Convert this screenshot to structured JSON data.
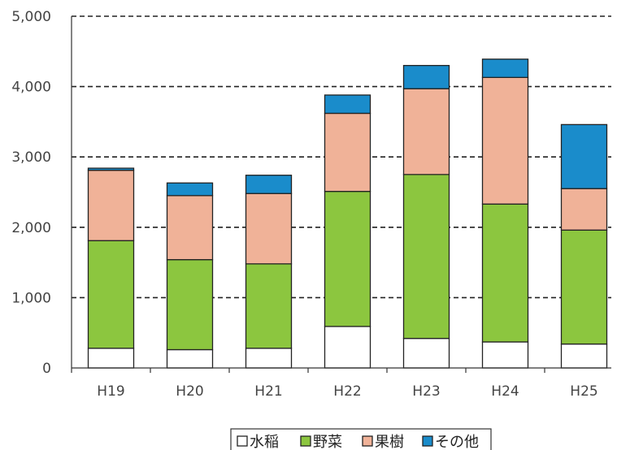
{
  "chart_data": {
    "type": "bar",
    "stacked": true,
    "categories": [
      "H19",
      "H20",
      "H21",
      "H22",
      "H23",
      "H24",
      "H25"
    ],
    "series": [
      {
        "name": "水稲",
        "color": "#ffffff",
        "values": [
          280,
          260,
          280,
          590,
          420,
          370,
          340
        ]
      },
      {
        "name": "野菜",
        "color": "#8cc63f",
        "values": [
          1530,
          1280,
          1200,
          1920,
          2330,
          1960,
          1620
        ]
      },
      {
        "name": "果樹",
        "color": "#f0b298",
        "values": [
          1000,
          910,
          1000,
          1110,
          1220,
          1800,
          590
        ]
      },
      {
        "name": "その他",
        "color": "#1a8ccb",
        "values": [
          30,
          180,
          260,
          260,
          330,
          260,
          910
        ]
      }
    ],
    "y_ticks": [
      "0",
      "1,000",
      "2,000",
      "3,000",
      "4,000",
      "5,000"
    ],
    "ylim": [
      0,
      5000
    ],
    "grid": "dashed horizontal",
    "legend_position": "bottom"
  }
}
